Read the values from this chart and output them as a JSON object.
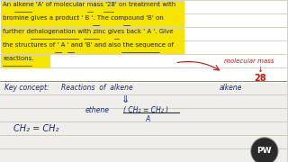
{
  "bg_color": "#e8e8e0",
  "upper_bg": "#ffffff",
  "highlight_color": "#f5e500",
  "line_color": "#b0b0a0",
  "text_color_dark": "#1a1a1a",
  "text_color_blue": "#1a2a7a",
  "text_color_red": "#cc1100",
  "para_lines": [
    "An alkene 'A' of molecular mass '28' on treatment with",
    "bromine gives a product ' B '. The compound 'B' on",
    "further dehalogenation with zinc gives back ' A '. Give",
    "the structures of ' A ' and 'B' and also the sequence of",
    "reactions."
  ],
  "key_concept_label": "Key concept:",
  "key_concept_right": "Reactions  of  alkene",
  "down_arrow": "⇓",
  "ethene_label": "ethene",
  "formula": "( CH₂ = CH₂ )",
  "formula_sub": "A",
  "bottom_formula": "CH₂ = CH₂",
  "mol_mass_label": "molecular mass",
  "mol_mass_value": "28",
  "pw_bg": "#2a2a2a",
  "pw_ring": "#888888"
}
